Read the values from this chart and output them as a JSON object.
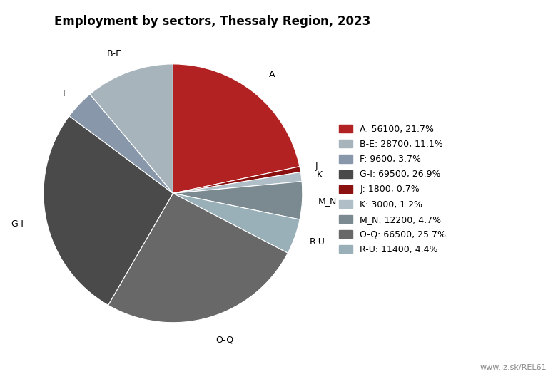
{
  "title": "Employment by sectors, Thessaly Region, 2023",
  "ordered_sectors": [
    "A",
    "J",
    "K",
    "M_N",
    "R-U",
    "O-Q",
    "G-I",
    "F",
    "B-E"
  ],
  "ordered_values": [
    56100,
    1800,
    3000,
    12200,
    11400,
    66500,
    69500,
    9600,
    28700
  ],
  "ordered_colors": [
    "#b22222",
    "#8b1010",
    "#b0bec8",
    "#7a8a90",
    "#9ab0b8",
    "#686868",
    "#4a4a4a",
    "#8898aa",
    "#a8b4bc"
  ],
  "legend_labels": [
    "A: 56100, 21.7%",
    "B-E: 28700, 11.1%",
    "F: 9600, 3.7%",
    "G-I: 69500, 26.9%",
    "J: 1800, 0.7%",
    "K: 3000, 1.2%",
    "M_N: 12200, 4.7%",
    "O-Q: 66500, 25.7%",
    "R-U: 11400, 4.4%"
  ],
  "legend_colors": [
    "#b22222",
    "#a8b4bc",
    "#8898aa",
    "#4a4a4a",
    "#8b1010",
    "#b0bec8",
    "#7a8a90",
    "#686868",
    "#9ab0b8"
  ],
  "watermark": "www.iz.sk/REL61",
  "background_color": "#ffffff"
}
